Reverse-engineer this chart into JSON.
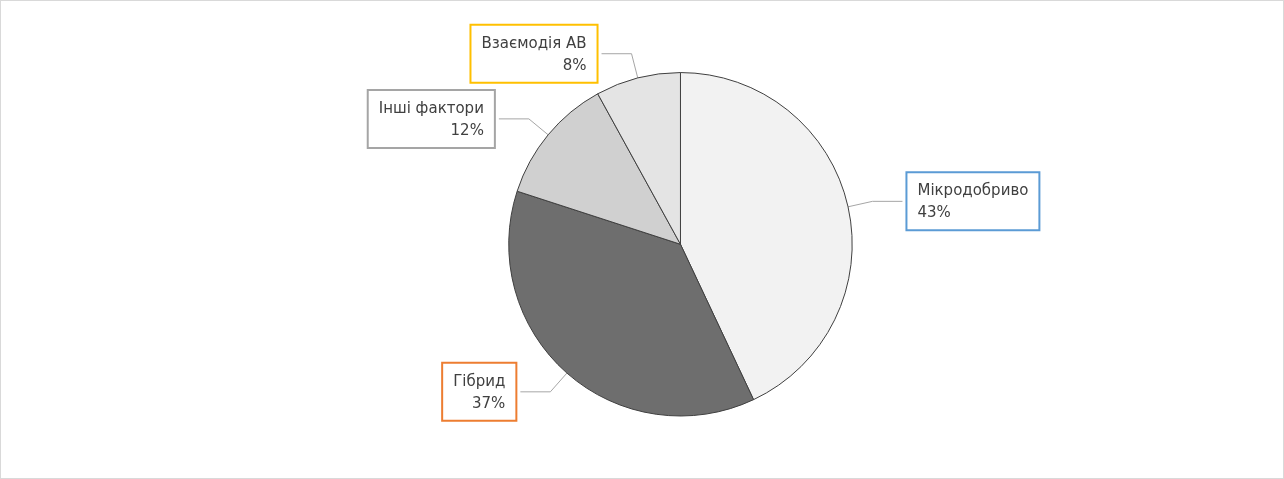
{
  "chart_data": {
    "type": "pie",
    "categories": [
      "Мікродобриво",
      "Гібрид",
      "Інші фактори",
      "Взаємодія АВ"
    ],
    "values": [
      43,
      37,
      12,
      8
    ],
    "colors": [
      "#f2f2f2",
      "#6e6e6e",
      "#d0d0d0",
      "#e4e4e4"
    ],
    "value_labels": [
      "43%",
      "37%",
      "12%",
      "8%"
    ],
    "legend": false
  }
}
